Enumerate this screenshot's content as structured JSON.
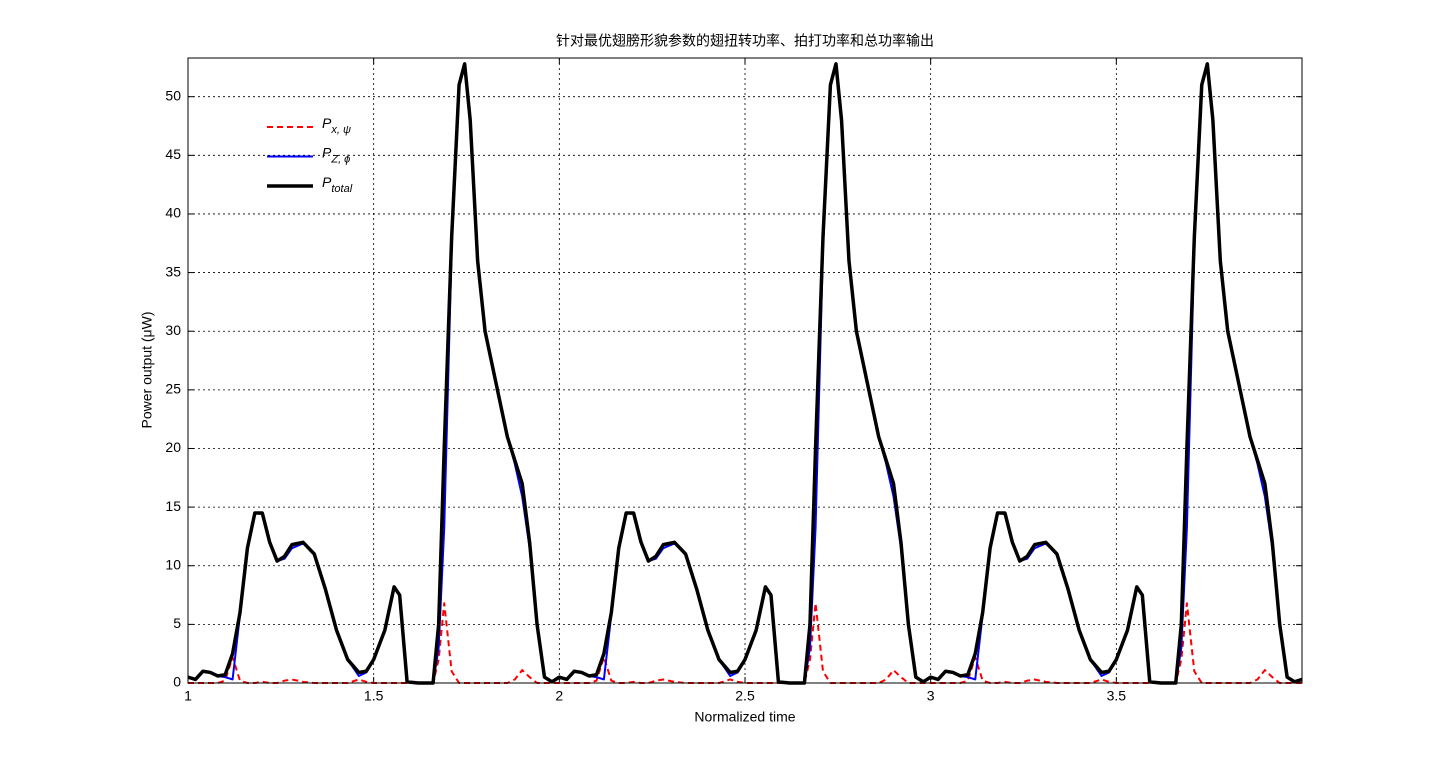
{
  "chart_data": {
    "type": "line",
    "title": "针对最优翅膀形貌参数的翅扭转功率、拍打功率和总功率输出",
    "xlabel": "Normalized time",
    "ylabel": "Power output (μW)",
    "xlim": [
      1,
      4
    ],
    "ylim": [
      0,
      53.3
    ],
    "xticks": [
      1,
      1.5,
      2,
      2.5,
      3,
      3.5
    ],
    "yticks": [
      0,
      5,
      10,
      15,
      20,
      25,
      30,
      35,
      40,
      45,
      50
    ],
    "grid": true,
    "legend": "upper left",
    "x": [
      1,
      1.02,
      1.04,
      1.06,
      1.08,
      1.1,
      1.12,
      1.14,
      1.16,
      1.18,
      1.2,
      1.22,
      1.24,
      1.26,
      1.28,
      1.31,
      1.34,
      1.37,
      1.4,
      1.43,
      1.46,
      1.48,
      1.5,
      1.53,
      1.555,
      1.57,
      1.59,
      1.62,
      1.66,
      1.675,
      1.69,
      1.71,
      1.73,
      1.745,
      1.76,
      1.78,
      1.8,
      1.82,
      1.84,
      1.86,
      1.88,
      1.9,
      1.92,
      1.94,
      1.96,
      1.98,
      2,
      2.02,
      2.04,
      2.06,
      2.08,
      2.1,
      2.12,
      2.14,
      2.16,
      2.18,
      2.2,
      2.22,
      2.24,
      2.26,
      2.28,
      2.31,
      2.34,
      2.37,
      2.4,
      2.43,
      2.46,
      2.48,
      2.5,
      2.53,
      2.555,
      2.57,
      2.59,
      2.62,
      2.66,
      2.675,
      2.69,
      2.71,
      2.73,
      2.745,
      2.76,
      2.78,
      2.8,
      2.82,
      2.84,
      2.86,
      2.88,
      2.9,
      2.92,
      2.94,
      2.96,
      2.98,
      3,
      3.02,
      3.04,
      3.06,
      3.08,
      3.1,
      3.12,
      3.14,
      3.16,
      3.18,
      3.2,
      3.22,
      3.24,
      3.26,
      3.28,
      3.31,
      3.34,
      3.37,
      3.4,
      3.43,
      3.46,
      3.48,
      3.5,
      3.53,
      3.555,
      3.57,
      3.59,
      3.62,
      3.66,
      3.675,
      3.69,
      3.71,
      3.73,
      3.745,
      3.76,
      3.78,
      3.8,
      3.82,
      3.84,
      3.86,
      3.88,
      3.9,
      3.92,
      3.94,
      3.96,
      3.98,
      4
    ],
    "series": [
      {
        "name": "Px, ψ",
        "color": "#ff0000",
        "dash": true,
        "values": [
          0,
          0,
          0,
          0,
          0,
          0.2,
          2.2,
          0.2,
          0,
          0,
          0.1,
          0,
          0,
          0.2,
          0.3,
          0.1,
          0,
          0,
          0,
          0,
          0.3,
          0.1,
          0,
          0,
          0,
          0,
          0,
          0,
          0,
          2,
          6.8,
          1,
          0,
          0,
          0,
          0,
          0,
          0,
          0,
          0,
          0.3,
          1.1,
          0.5,
          0,
          0,
          0,
          0,
          0,
          0,
          0,
          0,
          0.2,
          2.2,
          0.2,
          0,
          0,
          0.1,
          0,
          0,
          0.2,
          0.3,
          0.1,
          0,
          0,
          0,
          0,
          0.3,
          0.1,
          0,
          0,
          0,
          0,
          0,
          0,
          0,
          2,
          6.8,
          1,
          0,
          0,
          0,
          0,
          0,
          0,
          0,
          0,
          0.3,
          1.1,
          0.5,
          0,
          0,
          0,
          0,
          0,
          0,
          0,
          0,
          0.2,
          2.2,
          0.2,
          0,
          0,
          0.1,
          0,
          0,
          0.2,
          0.3,
          0.1,
          0,
          0,
          0,
          0,
          0.3,
          0.1,
          0,
          0,
          0,
          0,
          0,
          0,
          0,
          2,
          6.8,
          1,
          0,
          0,
          0,
          0,
          0,
          0,
          0,
          0,
          0.3,
          1.1,
          0.5,
          0,
          0,
          0,
          0
        ]
      },
      {
        "name": "PZ, ϕ",
        "color": "#0000ff",
        "dash": false,
        "values": [
          0.5,
          0.3,
          1,
          0.9,
          0.6,
          0.5,
          0.3,
          5.8,
          11.5,
          14.5,
          14.4,
          12,
          10.4,
          10.6,
          11.5,
          11.9,
          11,
          8,
          4.5,
          2,
          0.6,
          0.9,
          2,
          4.5,
          8.2,
          7.5,
          0.1,
          0,
          0,
          3,
          13.2,
          37,
          51,
          52.8,
          48,
          36,
          30,
          27,
          24,
          21,
          18.7,
          15.9,
          11.5,
          5,
          0.5,
          0.1,
          0.5,
          0.3,
          1,
          0.9,
          0.6,
          0.5,
          0.3,
          5.8,
          11.5,
          14.5,
          14.4,
          12,
          10.4,
          10.6,
          11.5,
          11.9,
          11,
          8,
          4.5,
          2,
          0.6,
          0.9,
          2,
          4.5,
          8.2,
          7.5,
          0.1,
          0,
          0,
          3,
          13.2,
          37,
          51,
          52.8,
          48,
          36,
          30,
          27,
          24,
          21,
          18.7,
          15.9,
          11.5,
          5,
          0.5,
          0.1,
          0.5,
          0.3,
          1,
          0.9,
          0.6,
          0.5,
          0.3,
          5.8,
          11.5,
          14.5,
          14.4,
          12,
          10.4,
          10.6,
          11.5,
          11.9,
          11,
          8,
          4.5,
          2,
          0.6,
          0.9,
          2,
          4.5,
          8.2,
          7.5,
          0.1,
          0,
          0,
          3,
          13.2,
          37,
          51,
          52.8,
          48,
          36,
          30,
          27,
          24,
          21,
          18.7,
          15.9,
          11.5,
          5,
          0.5,
          0.1,
          0.3
        ]
      },
      {
        "name": "Ptotal",
        "color": "#000000",
        "dash": false,
        "values": [
          0.5,
          0.3,
          1,
          0.9,
          0.6,
          0.7,
          2.5,
          6,
          11.5,
          14.5,
          14.5,
          12,
          10.4,
          10.8,
          11.8,
          12,
          11,
          8,
          4.5,
          2,
          0.9,
          1,
          2,
          4.5,
          8.2,
          7.5,
          0.1,
          0,
          0,
          5,
          20,
          38,
          51,
          52.8,
          48,
          36,
          30,
          27,
          24,
          21,
          19,
          17,
          12,
          5,
          0.5,
          0.1,
          0.5,
          0.3,
          1,
          0.9,
          0.6,
          0.7,
          2.5,
          6,
          11.5,
          14.5,
          14.5,
          12,
          10.4,
          10.8,
          11.8,
          12,
          11,
          8,
          4.5,
          2,
          0.9,
          1,
          2,
          4.5,
          8.2,
          7.5,
          0.1,
          0,
          0,
          5,
          20,
          38,
          51,
          52.8,
          48,
          36,
          30,
          27,
          24,
          21,
          19,
          17,
          12,
          5,
          0.5,
          0.1,
          0.5,
          0.3,
          1,
          0.9,
          0.6,
          0.7,
          2.5,
          6,
          11.5,
          14.5,
          14.5,
          12,
          10.4,
          10.8,
          11.8,
          12,
          11,
          8,
          4.5,
          2,
          0.9,
          1,
          2,
          4.5,
          8.2,
          7.5,
          0.1,
          0,
          0,
          5,
          20,
          38,
          51,
          52.8,
          48,
          36,
          30,
          27,
          24,
          21,
          19,
          17,
          12,
          5,
          0.5,
          0.1,
          0.3
        ]
      }
    ]
  }
}
